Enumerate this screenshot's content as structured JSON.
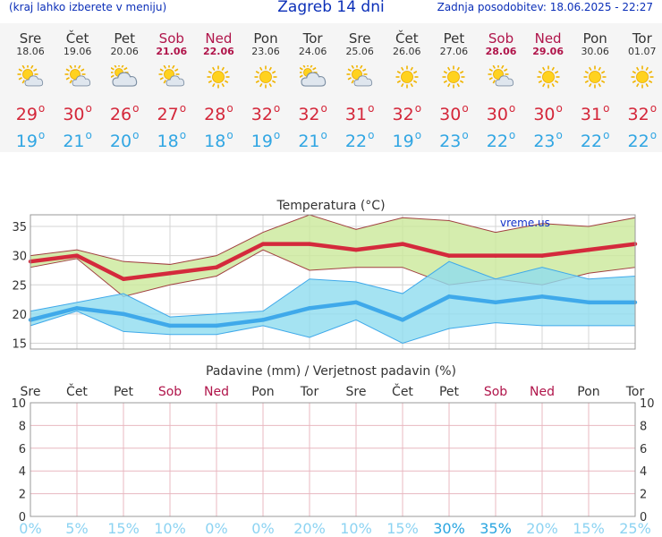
{
  "header": {
    "menu_hint": "(kraj lahko izberete v meniju)",
    "title": "Zagreb 14 dni",
    "updated": "Zadnja posodobitev: 18.06.2025 - 22:27"
  },
  "days": [
    {
      "name": "Sre",
      "date": "18.06",
      "weekend": false,
      "icon": "partly-cloudy-icon",
      "max": "29",
      "min": "19"
    },
    {
      "name": "Čet",
      "date": "19.06",
      "weekend": false,
      "icon": "partly-cloudy-icon",
      "max": "30",
      "min": "21"
    },
    {
      "name": "Pet",
      "date": "20.06",
      "weekend": false,
      "icon": "mostly-cloudy-icon",
      "max": "26",
      "min": "20"
    },
    {
      "name": "Sob",
      "date": "21.06",
      "weekend": true,
      "icon": "partly-cloudy-icon",
      "max": "27",
      "min": "18"
    },
    {
      "name": "Ned",
      "date": "22.06",
      "weekend": true,
      "icon": "sunny-icon",
      "max": "28",
      "min": "18"
    },
    {
      "name": "Pon",
      "date": "23.06",
      "weekend": false,
      "icon": "sunny-icon",
      "max": "32",
      "min": "19"
    },
    {
      "name": "Tor",
      "date": "24.06",
      "weekend": false,
      "icon": "mostly-cloudy-icon",
      "max": "32",
      "min": "21"
    },
    {
      "name": "Sre",
      "date": "25.06",
      "weekend": false,
      "icon": "partly-cloudy-icon",
      "max": "31",
      "min": "22"
    },
    {
      "name": "Čet",
      "date": "26.06",
      "weekend": false,
      "icon": "sunny-icon",
      "max": "32",
      "min": "19"
    },
    {
      "name": "Pet",
      "date": "27.06",
      "weekend": false,
      "icon": "sunny-icon",
      "max": "30",
      "min": "23"
    },
    {
      "name": "Sob",
      "date": "28.06",
      "weekend": true,
      "icon": "partly-cloudy-icon",
      "max": "30",
      "min": "22"
    },
    {
      "name": "Ned",
      "date": "29.06",
      "weekend": true,
      "icon": "sunny-icon",
      "max": "30",
      "min": "23"
    },
    {
      "name": "Pon",
      "date": "30.06",
      "weekend": false,
      "icon": "sunny-icon",
      "max": "31",
      "min": "22"
    },
    {
      "name": "Tor",
      "date": "01.07",
      "weekend": false,
      "icon": "sunny-icon",
      "max": "32",
      "min": "22"
    }
  ],
  "chart_data": [
    {
      "type": "line",
      "title": "Temperatura (°C)",
      "watermark": "vreme.us",
      "categories": [
        "Sre",
        "Čet",
        "Pet",
        "Sob",
        "Ned",
        "Pon",
        "Tor",
        "Sre",
        "Čet",
        "Pet",
        "Sob",
        "Ned",
        "Pon",
        "Tor"
      ],
      "ylim": [
        14,
        37
      ],
      "yticks": [
        15,
        20,
        25,
        30,
        35
      ],
      "grid": true,
      "colors": {
        "max": "#d42a3c",
        "min": "#3fa9ea",
        "max_band": "#cbe89a",
        "min_band": "#8fdcef"
      },
      "series": [
        {
          "name": "max",
          "values": [
            29,
            30,
            26,
            27,
            28,
            32,
            32,
            31,
            32,
            30,
            30,
            30,
            31,
            32
          ]
        },
        {
          "name": "min",
          "values": [
            19,
            21,
            20,
            18,
            18,
            19,
            21,
            22,
            19,
            23,
            22,
            23,
            22,
            22
          ]
        }
      ],
      "bands": [
        {
          "name": "max_range",
          "upper": [
            30,
            31,
            29,
            28.5,
            30,
            34,
            37,
            34.5,
            36.5,
            36,
            34,
            35.5,
            35,
            36.5
          ],
          "lower": [
            28,
            29.5,
            23,
            25,
            26.5,
            31,
            27.5,
            28,
            28,
            25,
            26,
            25,
            27,
            28
          ]
        },
        {
          "name": "min_range",
          "upper": [
            20.5,
            22,
            23.5,
            19.5,
            20,
            20.5,
            26,
            25.5,
            23.5,
            29,
            26,
            28,
            26,
            26.5
          ],
          "lower": [
            18,
            20.5,
            17,
            16.5,
            16.5,
            18,
            16,
            19,
            15,
            17.5,
            18.5,
            18,
            18,
            18
          ]
        }
      ]
    },
    {
      "type": "bar",
      "title": "Padavine (mm) / Verjetnost padavin (%)",
      "categories": [
        "Sre",
        "Čet",
        "Pet",
        "Sob",
        "Ned",
        "Pon",
        "Tor",
        "Sre",
        "Čet",
        "Pet",
        "Sob",
        "Ned",
        "Pon",
        "Tor"
      ],
      "weekend": [
        false,
        false,
        false,
        true,
        true,
        false,
        false,
        false,
        false,
        false,
        true,
        true,
        false,
        false
      ],
      "ylim": [
        0,
        10
      ],
      "yticks": [
        0,
        2,
        4,
        6,
        8,
        10
      ],
      "grid": true,
      "series": [
        {
          "name": "Padavine",
          "values": [
            0,
            0,
            0,
            0,
            0,
            0,
            0,
            0,
            0,
            0,
            0,
            0,
            0,
            0
          ]
        }
      ],
      "probability": [
        "0%",
        "5%",
        "15%",
        "10%",
        "0%",
        "0%",
        "20%",
        "10%",
        "15%",
        "30%",
        "35%",
        "20%",
        "15%",
        "25%"
      ],
      "probability_values": [
        0,
        5,
        15,
        10,
        0,
        0,
        20,
        10,
        15,
        30,
        35,
        20,
        15,
        25
      ]
    }
  ]
}
